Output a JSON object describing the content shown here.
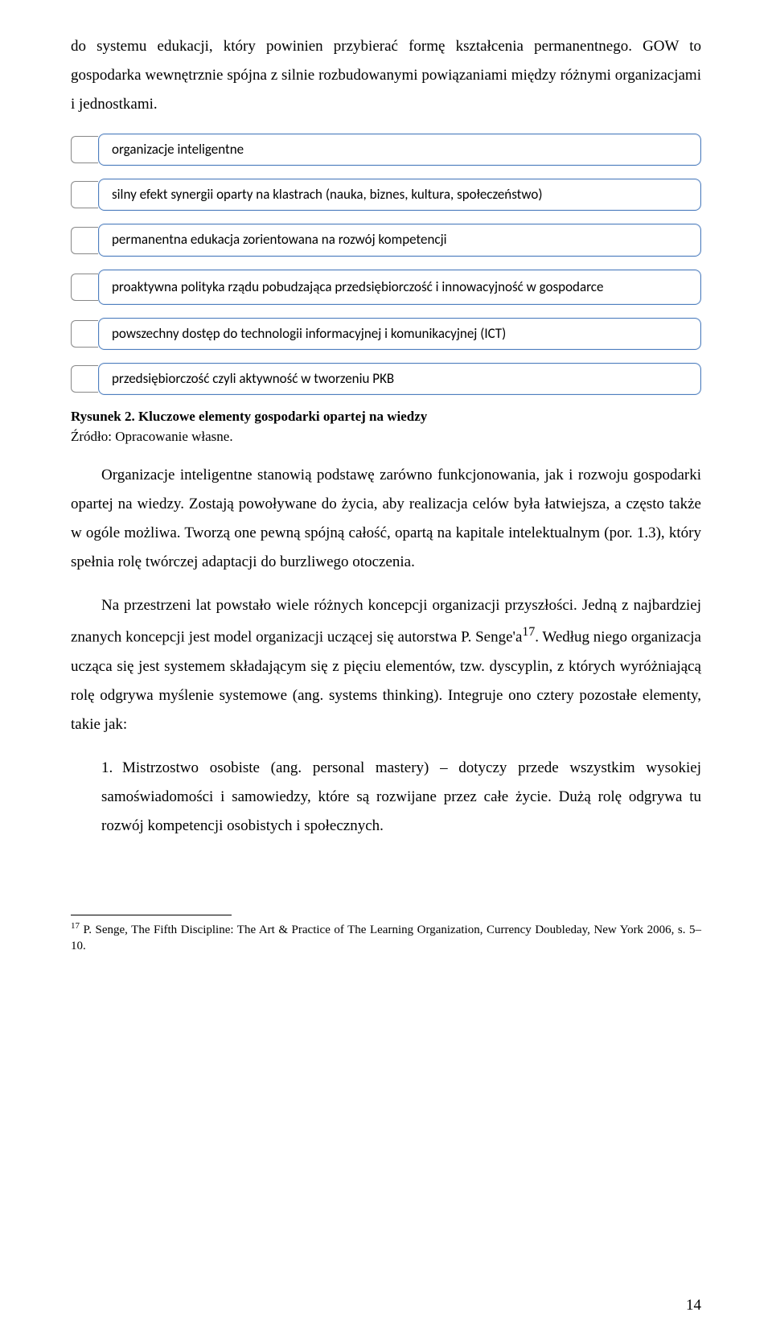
{
  "intro": {
    "p1": "do systemu edukacji, który powinien przybierać formę kształcenia permanentnego. GOW to gospodarka wewnętrznie spójna z silnie rozbudowanymi powiązaniami między różnymi organizacjami i jednostkami."
  },
  "diagram": {
    "border_color": "#4f7fbf",
    "connector_color": "#888888",
    "background": "#ffffff",
    "font_family": "Calibri, Arial, sans-serif",
    "font_size_pt": 12,
    "items": [
      "organizacje inteligentne",
      "silny efekt synergii oparty na klastrach (nauka, biznes, kultura, społeczeństwo)",
      "permanentna edukacja zorientowana na rozwój kompetencji",
      "proaktywna polityka rządu pobudzająca przedsiębiorczość i innowacyjność w gospodarce",
      "powszechny dostęp do technologii informacyjnej i komunikacyjnej (ICT)",
      "przedsiębiorczość czyli aktywność w tworzeniu PKB"
    ]
  },
  "caption": {
    "label": "Rysunek 2. Kluczowe elementy gospodarki opartej na wiedzy",
    "source": "Źródło: Opracowanie własne."
  },
  "body": {
    "p2": "Organizacje inteligentne stanowią podstawę zarówno funkcjonowania, jak i rozwoju gospodarki opartej na wiedzy. Zostają powoływane do życia, aby realizacja celów była łatwiejsza, a często także w ogóle możliwa. Tworzą one pewną spójną całość, opartą na kapitale intelektualnym (por. 1.3), który spełnia rolę twórczej adaptacji do burzliwego otoczenia.",
    "p3_a": "Na przestrzeni lat powstało wiele różnych koncepcji organizacji przyszłości. Jedną z najbardziej znanych koncepcji jest model organizacji uczącej się autorstwa P. Senge'a",
    "p3_sup": "17",
    "p3_b": ". Według niego organizacja ucząca się jest systemem składającym się z pięciu elementów, tzw. dyscyplin, z których wyróżniającą rolę odgrywa myślenie systemowe (ang. systems thinking). Integruje ono cztery pozostałe elementy, takie jak:"
  },
  "list": {
    "item1_num": "1.",
    "item1": "Mistrzostwo osobiste (ang. personal mastery) – dotyczy przede wszystkim wysokiej samoświadomości i samowiedzy, które są rozwijane przez całe życie. Dużą rolę odgrywa tu rozwój kompetencji osobistych i społecznych."
  },
  "footnote": {
    "sup": "17",
    "text": " P. Senge, The Fifth Discipline: The Art & Practice of The Learning Organization, Currency Doubleday, New York 2006, s. 5–10."
  },
  "page_number": "14"
}
